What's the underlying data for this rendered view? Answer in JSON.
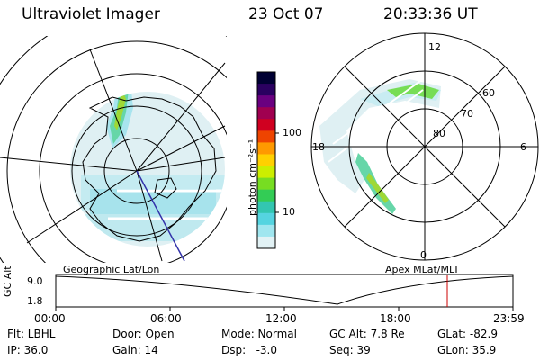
{
  "header": {
    "instrument": "Ultraviolet Imager",
    "date": "23 Oct 07",
    "time": "20:33:36 UT"
  },
  "left_panel": {
    "caption": "Geographic Lat/Lon"
  },
  "right_panel": {
    "caption": "Apex  MLat/MLT",
    "mlt_labels": [
      "12",
      "18",
      "6",
      "0"
    ],
    "lat_labels": [
      "60",
      "70",
      "80"
    ]
  },
  "colorbar": {
    "unit": "photon cm⁻²s⁻¹",
    "ticks": [
      "100",
      "10"
    ],
    "colors": [
      "#000033",
      "#2a0060",
      "#6a0080",
      "#a00050",
      "#d00020",
      "#ee4400",
      "#ff9900",
      "#ffd000",
      "#ccee00",
      "#77dd22",
      "#33cc55",
      "#33c6b0",
      "#55d4e0",
      "#a0e6ef",
      "#e2f2f5"
    ]
  },
  "orbit_plot": {
    "ylabel": "GC Alt",
    "y_ticks": [
      "9.0",
      "1.8"
    ],
    "x_ticks": [
      "00:00",
      "06:00",
      "12:00",
      "18:00",
      "23:59"
    ],
    "marker_color": "#cc0000"
  },
  "status": {
    "row1": [
      "Flt: LBHL",
      "Door: Open",
      "Mode: Normal",
      "GC Alt: 7.8 Re",
      "GLat: -82.9"
    ],
    "row2": [
      "IP: 36.0",
      "Gain: 14",
      "Dsp:   -3.0",
      "Seq: 39",
      "GLon: 35.9"
    ]
  }
}
